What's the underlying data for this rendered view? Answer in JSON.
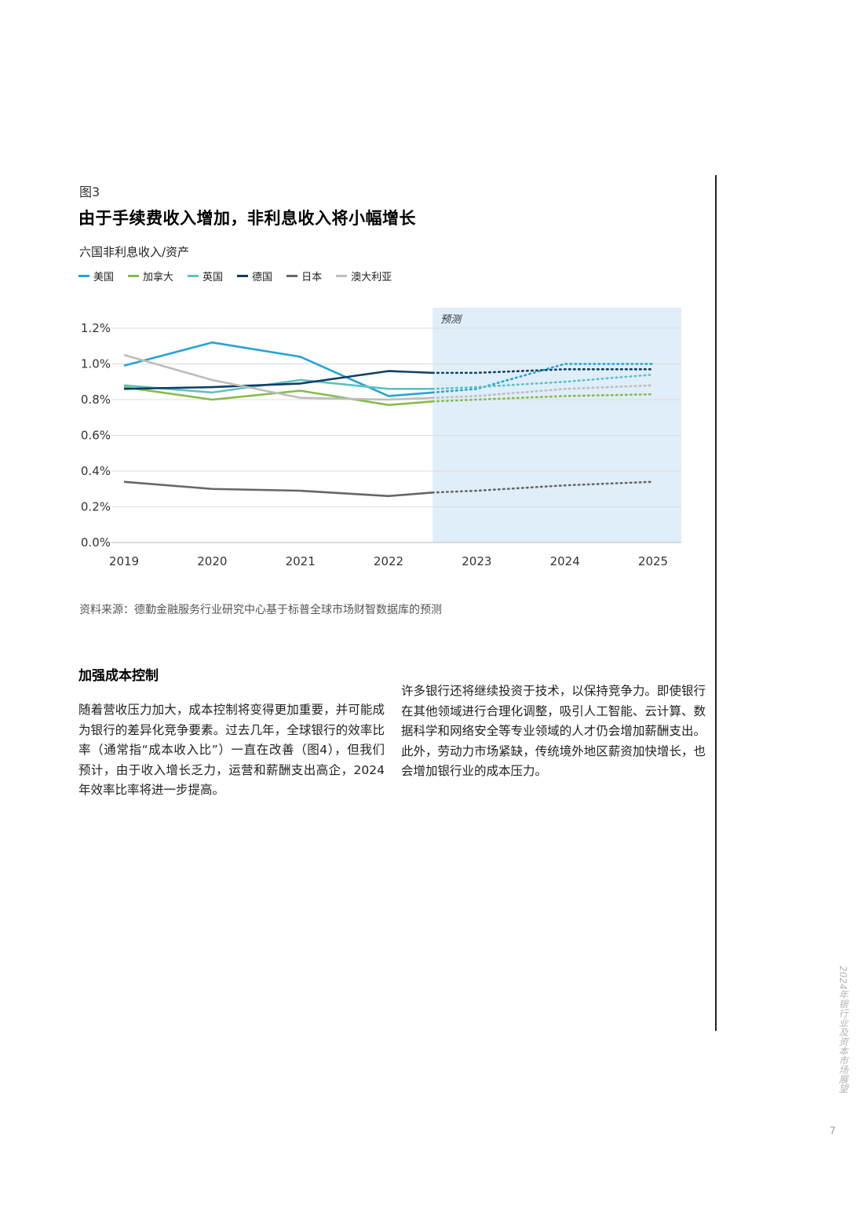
{
  "figure": {
    "label": "图3",
    "title": "由于手续费收入增加，非利息收入将小幅增长",
    "subtitle": "六国非利息收入/资产",
    "legend": [
      {
        "name": "美国",
        "color": "#27a3d6"
      },
      {
        "name": "加拿大",
        "color": "#86bc4a"
      },
      {
        "name": "英国",
        "color": "#5ec2be"
      },
      {
        "name": "德国",
        "color": "#0f3e66"
      },
      {
        "name": "日本",
        "color": "#666666"
      },
      {
        "name": "澳大利亚",
        "color": "#bdbdbd"
      }
    ],
    "forecast_label": "预测",
    "source": "资料来源：德勤金融服务行业研究中心基于标普全球市场财智数据库的预测"
  },
  "chart_data": {
    "type": "line",
    "x": [
      2019,
      2020,
      2021,
      2022,
      2022.5,
      2023,
      2024,
      2025
    ],
    "x_ticks": [
      "2019",
      "2020",
      "2021",
      "2022",
      "2023",
      "2024",
      "2025"
    ],
    "y_ticks": [
      "0.0%",
      "0.2%",
      "0.4%",
      "0.6%",
      "0.8%",
      "1.0%",
      "1.2%"
    ],
    "ylim": [
      0,
      1.2
    ],
    "xlim": [
      2019,
      2025
    ],
    "forecast_start": 2022.5,
    "grid": true,
    "series": [
      {
        "name": "美国",
        "color": "#27a3d6",
        "values": [
          0.99,
          1.12,
          1.04,
          0.82,
          0.84,
          0.86,
          1.0,
          1.0
        ]
      },
      {
        "name": "加拿大",
        "color": "#86bc4a",
        "values": [
          0.87,
          0.8,
          0.85,
          0.77,
          0.79,
          0.8,
          0.82,
          0.83
        ]
      },
      {
        "name": "英国",
        "color": "#5ec2be",
        "values": [
          0.88,
          0.84,
          0.91,
          0.86,
          0.86,
          0.87,
          0.9,
          0.94
        ]
      },
      {
        "name": "德国",
        "color": "#0f3e66",
        "values": [
          0.86,
          0.87,
          0.89,
          0.96,
          0.95,
          0.95,
          0.97,
          0.97
        ]
      },
      {
        "name": "日本",
        "color": "#666666",
        "values": [
          0.34,
          0.3,
          0.29,
          0.26,
          0.28,
          0.29,
          0.32,
          0.34
        ]
      },
      {
        "name": "澳大利亚",
        "color": "#bdbdbd",
        "values": [
          1.05,
          0.91,
          0.81,
          0.8,
          0.81,
          0.82,
          0.86,
          0.88
        ]
      }
    ]
  },
  "section": {
    "heading": "加强成本控制",
    "left_text": "随着营收压力加大，成本控制将变得更加重要，并可能成为银行的差异化竞争要素。过去几年，全球银行的效率比率（通常指“成本收入比”）一直在改善（图4），但我们预计，由于收入增长乏力，运营和薪酬支出高企，2024年效率比率将进一步提高。",
    "right_text": "许多银行还将继续投资于技术，以保持竞争力。即使银行在其他领域进行合理化调整，吸引人工智能、云计算、数据科学和网络安全等专业领域的人才仍会增加薪酬支出。此外，劳动力市场紧缺，传统境外地区薪资加快增长，也会增加银行业的成本压力。"
  },
  "sidebar": {
    "publication": "2024年银行业及资本市场展望",
    "page_number": "7"
  }
}
